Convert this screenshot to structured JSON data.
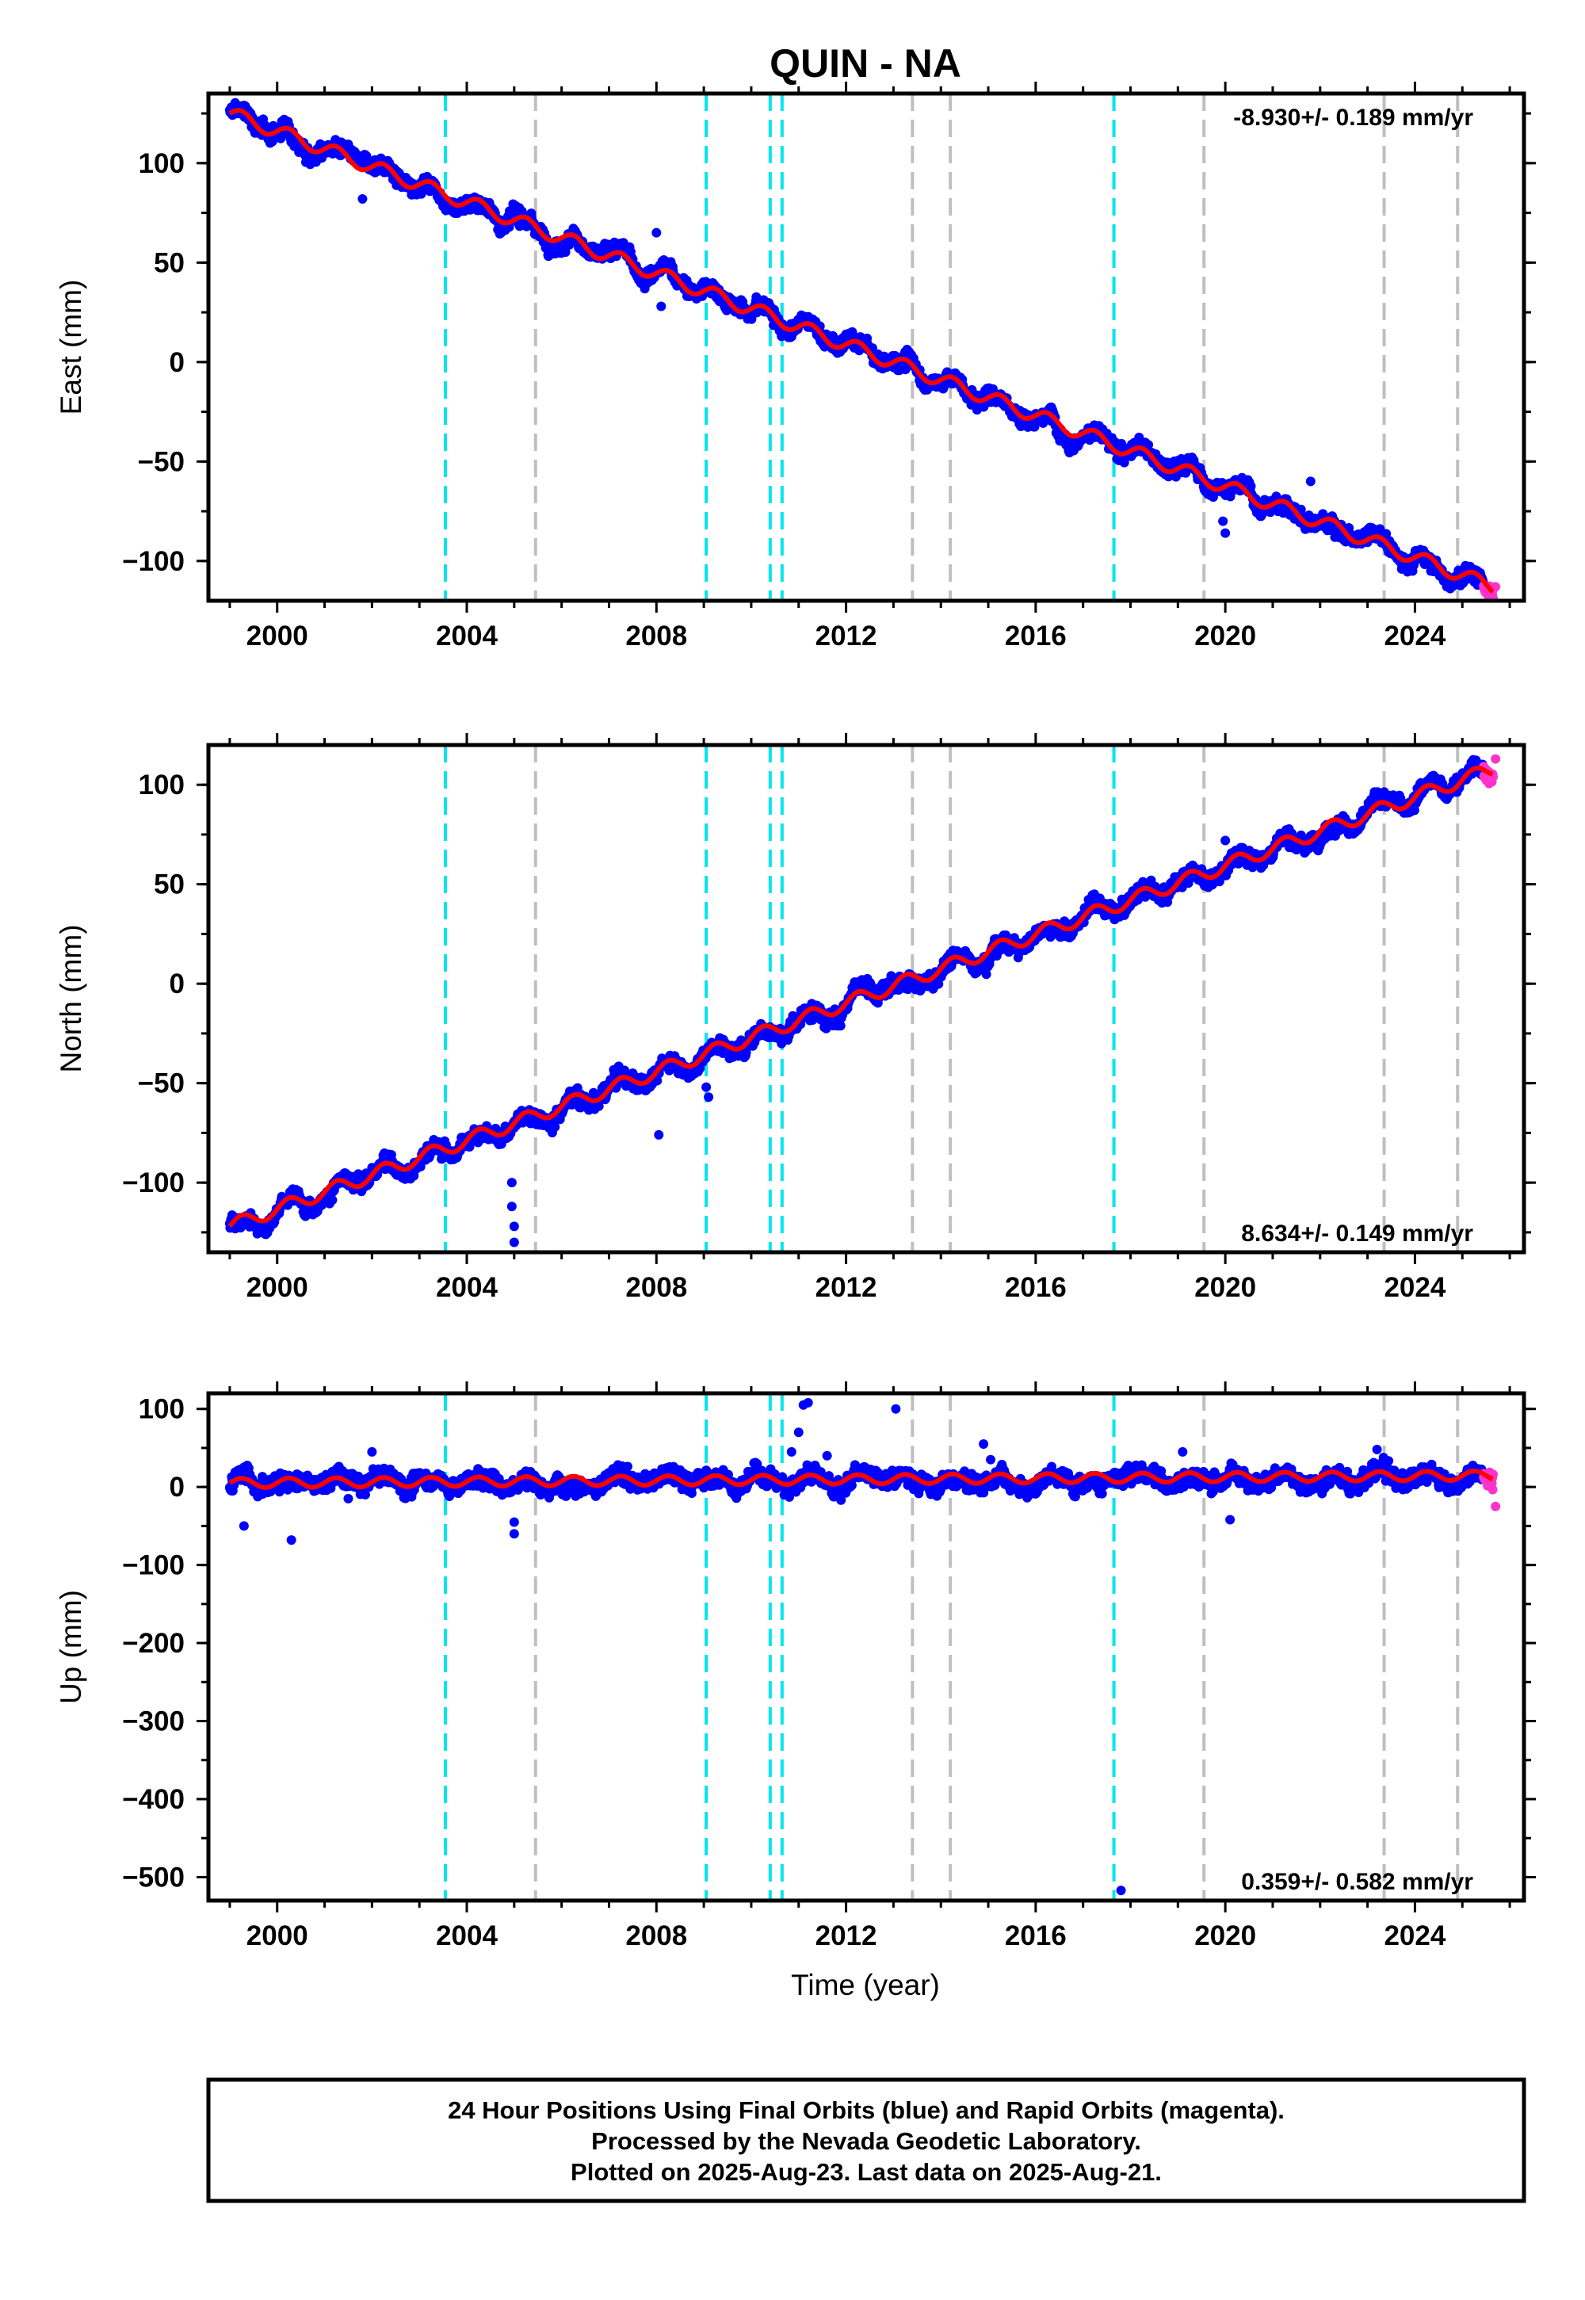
{
  "title": "QUIN - NA",
  "colors": {
    "final_orbits": "#0000ff",
    "rapid_orbits": "#ff33cc",
    "model": "#ff0000",
    "antenna_change": "#00e5ee",
    "other_event": "#bfbfbf"
  },
  "event_lines": {
    "antenna_change": [
      2003.55,
      2009.05,
      2010.4,
      2010.65,
      2017.65
    ],
    "other_event": [
      2005.45,
      2013.4,
      2014.2,
      2019.55,
      2023.35,
      2024.9
    ]
  },
  "chart_data": [
    {
      "type": "scatter",
      "name": "east",
      "ylabel": "East (mm)",
      "xlim": [
        1998.55,
        2026.3
      ],
      "ylim": [
        -120,
        135
      ],
      "xticks": [
        "2000",
        "2004",
        "2008",
        "2012",
        "2016",
        "2020",
        "2024"
      ],
      "yticks": [
        "100",
        "50",
        "0",
        "−50",
        "−100"
      ],
      "rate_text": "-8.930+/- 0.189 mm/yr",
      "rate_position": "top-right",
      "start": 1999.0,
      "end": 2025.65,
      "rapid_start": 2025.45,
      "trend_at_start": 125,
      "rate": -8.93,
      "seasonal_amplitude": 3.5,
      "scatter": 2.5,
      "outliers": [
        [
          2001.8,
          82
        ],
        [
          2008.0,
          65
        ],
        [
          2008.1,
          28
        ],
        [
          2019.95,
          -80
        ],
        [
          2020.0,
          -86
        ],
        [
          2021.8,
          -60
        ],
        [
          2025.7,
          -113
        ]
      ]
    },
    {
      "type": "scatter",
      "name": "north",
      "ylabel": "North (mm)",
      "xlim": [
        1998.55,
        2026.3
      ],
      "ylim": [
        -135,
        120
      ],
      "xticks": [
        "2000",
        "2004",
        "2008",
        "2012",
        "2016",
        "2020",
        "2024"
      ],
      "yticks": [
        "100",
        "50",
        "0",
        "−50",
        "−100"
      ],
      "rate_text": "8.634+/- 0.149 mm/yr",
      "rate_position": "bottom-right",
      "start": 1999.0,
      "end": 2025.65,
      "rapid_start": 2025.45,
      "trend_at_start": -122,
      "rate": 8.634,
      "seasonal_amplitude": 3.5,
      "scatter": 2.5,
      "outliers": [
        [
          2004.95,
          -100
        ],
        [
          2004.95,
          -112
        ],
        [
          2005.0,
          -122
        ],
        [
          2005.0,
          -130
        ],
        [
          2008.05,
          -76
        ],
        [
          2009.05,
          -52
        ],
        [
          2009.1,
          -57
        ],
        [
          2020.0,
          72
        ],
        [
          2025.7,
          113
        ]
      ]
    },
    {
      "type": "scatter",
      "name": "up",
      "ylabel": "Up (mm)",
      "xlim": [
        1998.55,
        2026.3
      ],
      "ylim": [
        -530,
        120
      ],
      "xticks": [
        "2000",
        "2004",
        "2008",
        "2012",
        "2016",
        "2020",
        "2024"
      ],
      "yticks": [
        "100",
        "0",
        "−100",
        "−200",
        "−300",
        "−400",
        "−500"
      ],
      "rate_text": "0.359+/- 0.582 mm/yr",
      "rate_position": "bottom-right",
      "start": 1999.0,
      "end": 2025.65,
      "rapid_start": 2025.45,
      "trend_at_start": 5,
      "rate": 0.359,
      "seasonal_amplitude": 6,
      "scatter": 7,
      "outliers": [
        [
          1999.3,
          -50
        ],
        [
          2000.3,
          -68
        ],
        [
          2001.5,
          -15
        ],
        [
          2002.0,
          45
        ],
        [
          2005.0,
          -45
        ],
        [
          2005.0,
          -60
        ],
        [
          2010.85,
          45
        ],
        [
          2011.0,
          70
        ],
        [
          2011.1,
          105
        ],
        [
          2011.2,
          108
        ],
        [
          2011.6,
          40
        ],
        [
          2013.05,
          100
        ],
        [
          2014.9,
          55
        ],
        [
          2015.05,
          35
        ],
        [
          2017.8,
          -517
        ],
        [
          2019.1,
          45
        ],
        [
          2020.1,
          -42
        ],
        [
          2023.2,
          48
        ],
        [
          2025.7,
          -25
        ]
      ]
    }
  ],
  "xlabel": "Time (year)",
  "caption": [
    "24 Hour Positions Using Final Orbits (blue) and Rapid Orbits (magenta).",
    "Processed by the Nevada Geodetic Laboratory.",
    "Plotted on 2025-Aug-23. Last data on 2025-Aug-21."
  ]
}
